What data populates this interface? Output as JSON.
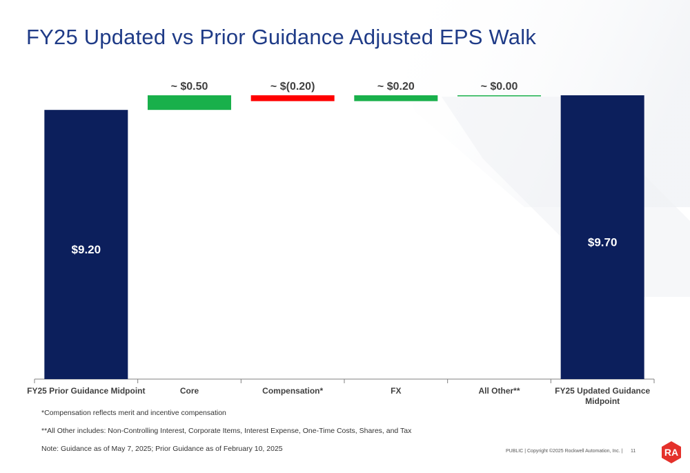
{
  "title": "FY25 Updated vs Prior Guidance Adjusted EPS Walk",
  "chart_data": {
    "type": "bar",
    "subtype": "waterfall",
    "categories": [
      "FY25 Prior Guidance Midpoint",
      "Core",
      "Compensation*",
      "FX",
      "All Other**",
      "FY25 Updated Guidance Midpoint"
    ],
    "values": [
      9.2,
      0.5,
      -0.2,
      0.2,
      0.0,
      9.7
    ],
    "kinds": [
      "total",
      "delta",
      "delta",
      "delta",
      "delta",
      "total"
    ],
    "data_labels": [
      "$9.20",
      "~ $0.50",
      "~ $(0.20)",
      "~ $0.20",
      "~ $0.00",
      "$9.70"
    ],
    "tick_labels": [
      [
        "FY25 Prior Guidance Midpoint"
      ],
      [
        "Core"
      ],
      [
        "Compensation*"
      ],
      [
        "FX"
      ],
      [
        "All Other**"
      ],
      [
        "FY25 Updated Guidance",
        "Midpoint"
      ]
    ],
    "colors": {
      "total": "#0c1f5c",
      "increase": "#19b04b",
      "decrease": "#ff0000",
      "axis": "#7f7f7f",
      "total_label": "#ffffff",
      "delta_label": "#404040"
    },
    "ylim": [
      0,
      9.7
    ],
    "grid": false,
    "legend": "none"
  },
  "footnotes": {
    "compensation": "*Compensation reflects merit and incentive compensation",
    "all_other": "**All Other includes: Non-Controlling Interest, Corporate Items, Interest Expense, One-Time Costs, Shares, and Tax",
    "note": "Note: Guidance as of May 7, 2025; Prior Guidance as of February 10, 2025"
  },
  "footer": {
    "text": "PUBLIC | Copyright ©2025 Rockwell Automation, Inc. |",
    "page_number": "11"
  },
  "logo": {
    "text": "RA",
    "color": "#e4312b"
  }
}
